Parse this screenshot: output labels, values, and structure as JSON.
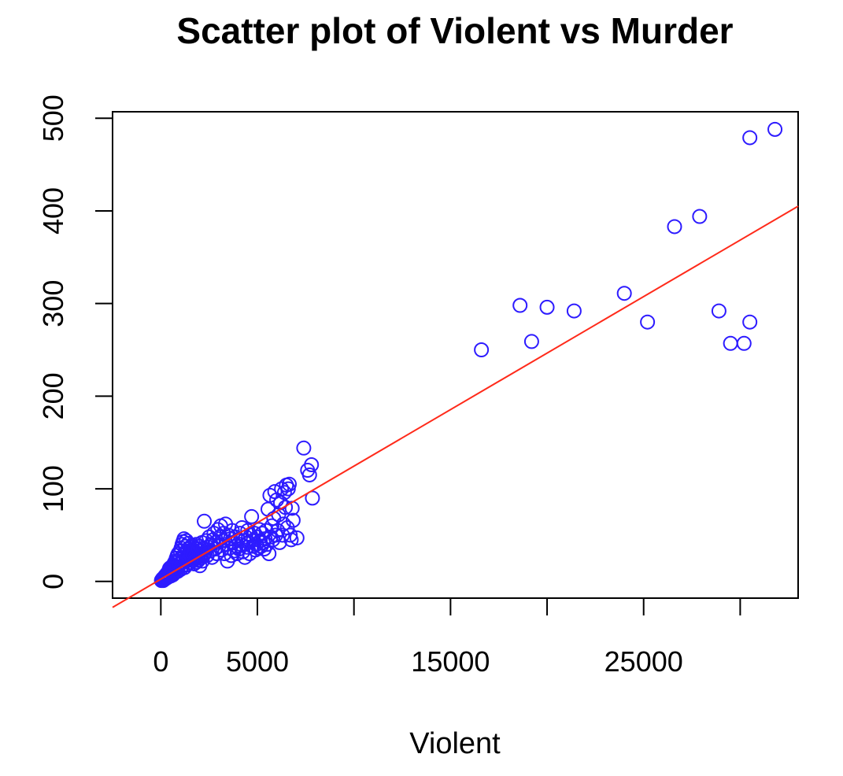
{
  "chart_data": {
    "type": "scatter",
    "title": "Scatter plot of Violent vs Murder",
    "xlabel": "Violent",
    "ylabel": "",
    "xlim": [
      -2500,
      33000
    ],
    "ylim": [
      -18,
      507
    ],
    "x_ticks": [
      0,
      5000,
      10000,
      15000,
      20000,
      25000,
      30000
    ],
    "x_tick_labels": [
      "0",
      "5000",
      "",
      "15000",
      "",
      "25000",
      ""
    ],
    "y_ticks": [
      0,
      100,
      200,
      300,
      400,
      500
    ],
    "y_tick_labels": [
      "0",
      "100",
      "200",
      "300",
      "400",
      "500"
    ],
    "grid": false,
    "legend": "none",
    "marker": "open-circle",
    "point_color": "#2d1bff",
    "fit_line": {
      "color": "#ff2a1a",
      "intercept": 2.5,
      "slope": 0.0122
    },
    "series": [
      {
        "points": [
          [
            30,
            1
          ],
          [
            60,
            2
          ],
          [
            90,
            3
          ],
          [
            120,
            1
          ],
          [
            150,
            4
          ],
          [
            180,
            2
          ],
          [
            200,
            5
          ],
          [
            220,
            6
          ],
          [
            250,
            3
          ],
          [
            280,
            7
          ],
          [
            300,
            8
          ],
          [
            320,
            4
          ],
          [
            350,
            9
          ],
          [
            380,
            10
          ],
          [
            400,
            5
          ],
          [
            420,
            12
          ],
          [
            450,
            14
          ],
          [
            480,
            8
          ],
          [
            500,
            15
          ],
          [
            520,
            6
          ],
          [
            550,
            11
          ],
          [
            580,
            13
          ],
          [
            600,
            16
          ],
          [
            620,
            7
          ],
          [
            650,
            18
          ],
          [
            680,
            9
          ],
          [
            700,
            20
          ],
          [
            720,
            12
          ],
          [
            750,
            22
          ],
          [
            780,
            10
          ],
          [
            800,
            25
          ],
          [
            820,
            14
          ],
          [
            850,
            28
          ],
          [
            880,
            11
          ],
          [
            900,
            30
          ],
          [
            920,
            16
          ],
          [
            950,
            19
          ],
          [
            980,
            24
          ],
          [
            1000,
            33
          ],
          [
            1020,
            13
          ],
          [
            1050,
            36
          ],
          [
            1080,
            21
          ],
          [
            1100,
            40
          ],
          [
            1120,
            17
          ],
          [
            1150,
            43
          ],
          [
            1180,
            26
          ],
          [
            1200,
            46
          ],
          [
            1230,
            15
          ],
          [
            1250,
            31
          ],
          [
            1280,
            38
          ],
          [
            1300,
            22
          ],
          [
            1320,
            44
          ],
          [
            1350,
            18
          ],
          [
            1380,
            28
          ],
          [
            1400,
            35
          ],
          [
            1420,
            41
          ],
          [
            1450,
            24
          ],
          [
            1480,
            30
          ],
          [
            1500,
            20
          ],
          [
            1520,
            37
          ],
          [
            1550,
            27
          ],
          [
            1580,
            33
          ],
          [
            1600,
            23
          ],
          [
            1620,
            39
          ],
          [
            1650,
            29
          ],
          [
            1680,
            34
          ],
          [
            1700,
            25
          ],
          [
            1720,
            19
          ],
          [
            1750,
            32
          ],
          [
            1780,
            36
          ],
          [
            1800,
            28
          ],
          [
            1830,
            40
          ],
          [
            1850,
            21
          ],
          [
            1880,
            31
          ],
          [
            1900,
            26
          ],
          [
            1930,
            35
          ],
          [
            1950,
            23
          ],
          [
            1980,
            30
          ],
          [
            2000,
            38
          ],
          [
            2020,
            17
          ],
          [
            2050,
            25
          ],
          [
            2080,
            33
          ],
          [
            2100,
            29
          ],
          [
            2130,
            42
          ],
          [
            2150,
            22
          ],
          [
            2180,
            27
          ],
          [
            2200,
            36
          ],
          [
            2250,
            65
          ],
          [
            2300,
            31
          ],
          [
            2350,
            44
          ],
          [
            2400,
            28
          ],
          [
            2450,
            37
          ],
          [
            2500,
            48
          ],
          [
            2550,
            33
          ],
          [
            2600,
            40
          ],
          [
            2650,
            26
          ],
          [
            2700,
            45
          ],
          [
            2750,
            52
          ],
          [
            2800,
            35
          ],
          [
            2850,
            42
          ],
          [
            2900,
            30
          ],
          [
            2950,
            56
          ],
          [
            3000,
            38
          ],
          [
            3050,
            48
          ],
          [
            3100,
            60
          ],
          [
            3150,
            34
          ],
          [
            3200,
            44
          ],
          [
            3250,
            52
          ],
          [
            3300,
            30
          ],
          [
            3350,
            62
          ],
          [
            3400,
            40
          ],
          [
            3450,
            22
          ],
          [
            3500,
            50
          ],
          [
            3550,
            36
          ],
          [
            3600,
            46
          ],
          [
            3650,
            28
          ],
          [
            3700,
            55
          ],
          [
            3750,
            42
          ],
          [
            3800,
            33
          ],
          [
            3850,
            48
          ],
          [
            3900,
            38
          ],
          [
            3950,
            30
          ],
          [
            4000,
            45
          ],
          [
            4050,
            35
          ],
          [
            4100,
            52
          ],
          [
            4150,
            40
          ],
          [
            4200,
            58
          ],
          [
            4250,
            32
          ],
          [
            4300,
            44
          ],
          [
            4350,
            26
          ],
          [
            4400,
            48
          ],
          [
            4450,
            37
          ],
          [
            4500,
            55
          ],
          [
            4550,
            42
          ],
          [
            4600,
            30
          ],
          [
            4650,
            50
          ],
          [
            4700,
            70
          ],
          [
            4750,
            38
          ],
          [
            4800,
            45
          ],
          [
            4850,
            52
          ],
          [
            4900,
            34
          ],
          [
            4950,
            40
          ],
          [
            5000,
            48
          ],
          [
            5050,
            36
          ],
          [
            5100,
            56
          ],
          [
            5150,
            44
          ],
          [
            5200,
            38
          ],
          [
            5250,
            52
          ],
          [
            5300,
            42
          ],
          [
            5350,
            35
          ],
          [
            5400,
            46
          ],
          [
            5450,
            55
          ],
          [
            5500,
            40
          ],
          [
            5550,
            78
          ],
          [
            5600,
            30
          ],
          [
            5650,
            93
          ],
          [
            5700,
            48
          ],
          [
            5750,
            60
          ],
          [
            5800,
            45
          ],
          [
            5850,
            68
          ],
          [
            5900,
            97
          ],
          [
            5950,
            50
          ],
          [
            6000,
            88
          ],
          [
            6050,
            55
          ],
          [
            6100,
            72
          ],
          [
            6150,
            42
          ],
          [
            6200,
            85
          ],
          [
            6250,
            100
          ],
          [
            6300,
            50
          ],
          [
            6350,
            62
          ],
          [
            6400,
            96
          ],
          [
            6450,
            80
          ],
          [
            6500,
            104
          ],
          [
            6550,
            58
          ],
          [
            6600,
            100
          ],
          [
            6650,
            105
          ],
          [
            6700,
            50
          ],
          [
            6750,
            45
          ],
          [
            6800,
            79
          ],
          [
            6850,
            66
          ],
          [
            7050,
            47
          ],
          [
            7400,
            144
          ],
          [
            7600,
            120
          ],
          [
            7700,
            115
          ],
          [
            7800,
            126
          ],
          [
            7850,
            90
          ],
          [
            16600,
            250
          ],
          [
            18600,
            298
          ],
          [
            19200,
            259
          ],
          [
            20000,
            296
          ],
          [
            21400,
            292
          ],
          [
            24000,
            311
          ],
          [
            25200,
            280
          ],
          [
            26600,
            383
          ],
          [
            27900,
            394
          ],
          [
            28900,
            292
          ],
          [
            29500,
            257
          ],
          [
            30200,
            257
          ],
          [
            30500,
            479
          ],
          [
            30500,
            280
          ],
          [
            31800,
            488
          ]
        ]
      }
    ]
  }
}
